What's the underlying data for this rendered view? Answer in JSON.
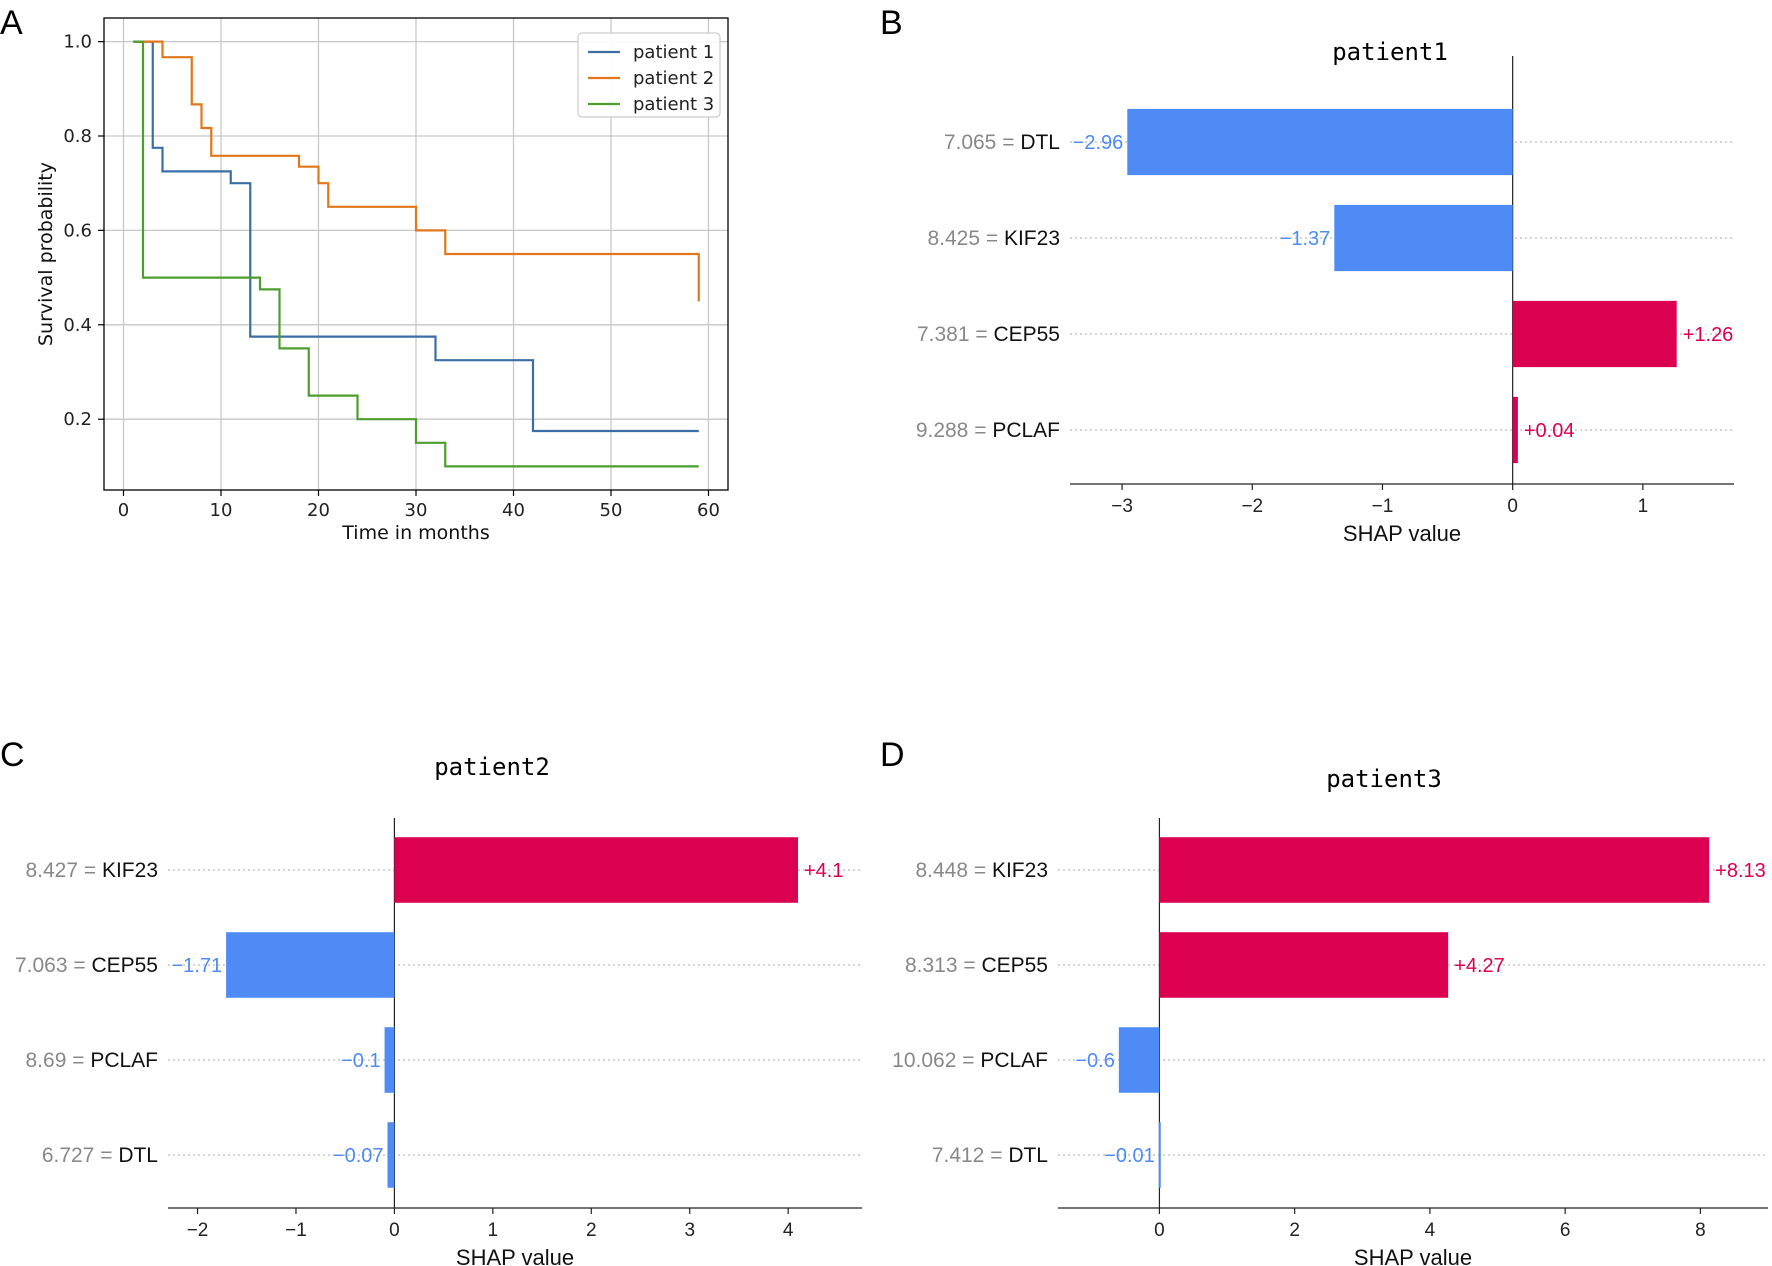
{
  "panels": {
    "A": "A",
    "B": "B",
    "C": "C",
    "D": "D"
  },
  "colors": {
    "blue": "#3a6ea5",
    "orange": "#e2761b",
    "green": "#4d9e2e",
    "shap_neg": "#4f8bf5",
    "shap_pos": "#dc0050",
    "grid": "#c8c8c8"
  },
  "chart_data": [
    {
      "type": "line",
      "panel": "A",
      "title": "",
      "xlabel": "Time in months",
      "ylabel": "Survival probability",
      "xlim": [
        -2,
        62
      ],
      "ylim": [
        0.05,
        1.05
      ],
      "xticks": [
        0,
        10,
        20,
        30,
        40,
        50,
        60
      ],
      "yticks": [
        0.2,
        0.4,
        0.6,
        0.8,
        1.0
      ],
      "xtick_labels": [
        "0",
        "10",
        "20",
        "30",
        "40",
        "50",
        "60"
      ],
      "ytick_labels": [
        "0.2",
        "0.4",
        "0.6",
        "0.8",
        "1.0"
      ],
      "grid": true,
      "legend_position": "top-right",
      "step": true,
      "series": [
        {
          "name": "patient 1",
          "color": "#3a6ea5",
          "x": [
            1,
            3,
            4,
            11,
            13,
            32,
            42,
            59
          ],
          "y": [
            1.0,
            0.775,
            0.725,
            0.7,
            0.375,
            0.325,
            0.175,
            0.175
          ]
        },
        {
          "name": "patient 2",
          "color": "#e2761b",
          "x": [
            1,
            4,
            7,
            8,
            9,
            18,
            20,
            21,
            30,
            33,
            59,
            59
          ],
          "y": [
            1.0,
            0.967,
            0.867,
            0.817,
            0.758,
            0.735,
            0.7,
            0.65,
            0.6,
            0.55,
            0.55,
            0.45
          ]
        },
        {
          "name": "patient 3",
          "color": "#4d9e2e",
          "x": [
            1,
            2,
            14,
            16,
            19,
            24,
            30,
            33,
            59
          ],
          "y": [
            1.0,
            0.5,
            0.475,
            0.35,
            0.25,
            0.2,
            0.15,
            0.1,
            0.1
          ]
        }
      ]
    },
    {
      "type": "bar",
      "panel": "B",
      "title": "patient1",
      "xlabel": "SHAP value",
      "xlim": [
        -3.4,
        1.7
      ],
      "xticks": [
        -3,
        -2,
        -1,
        0,
        1
      ],
      "xtick_labels": [
        "−3",
        "−2",
        "−1",
        "0",
        "1"
      ],
      "features": [
        {
          "value": "7.065",
          "name": "DTL",
          "shap": -2.96,
          "label": "−2.96"
        },
        {
          "value": "8.425",
          "name": "KIF23",
          "shap": -1.37,
          "label": "−1.37"
        },
        {
          "value": "7.381",
          "name": "CEP55",
          "shap": 1.26,
          "label": "+1.26"
        },
        {
          "value": "9.288",
          "name": "PCLAF",
          "shap": 0.04,
          "label": "+0.04"
        }
      ]
    },
    {
      "type": "bar",
      "panel": "C",
      "title": "patient2",
      "xlabel": "SHAP value",
      "xlim": [
        -2.3,
        4.75
      ],
      "xticks": [
        -2,
        -1,
        0,
        1,
        2,
        3,
        4
      ],
      "xtick_labels": [
        "−2",
        "−1",
        "0",
        "1",
        "2",
        "3",
        "4"
      ],
      "features": [
        {
          "value": "8.427",
          "name": "KIF23",
          "shap": 4.1,
          "label": "+4.1"
        },
        {
          "value": "7.063",
          "name": "CEP55",
          "shap": -1.71,
          "label": "−1.71"
        },
        {
          "value": "8.69",
          "name": "PCLAF",
          "shap": -0.1,
          "label": "−0.1"
        },
        {
          "value": "6.727",
          "name": "DTL",
          "shap": -0.07,
          "label": "−0.07"
        }
      ]
    },
    {
      "type": "bar",
      "panel": "D",
      "title": "patient3",
      "xlabel": "SHAP value",
      "xlim": [
        -1.5,
        9.0
      ],
      "xticks": [
        0,
        2,
        4,
        6,
        8
      ],
      "xtick_labels": [
        "0",
        "2",
        "4",
        "6",
        "8"
      ],
      "features": [
        {
          "value": "8.448",
          "name": "KIF23",
          "shap": 8.13,
          "label": "+8.13"
        },
        {
          "value": "8.313",
          "name": "CEP55",
          "shap": 4.27,
          "label": "+4.27"
        },
        {
          "value": "10.062",
          "name": "PCLAF",
          "shap": -0.6,
          "label": "−0.6"
        },
        {
          "value": "7.412",
          "name": "DTL",
          "shap": -0.01,
          "label": "−0.01"
        }
      ]
    }
  ]
}
